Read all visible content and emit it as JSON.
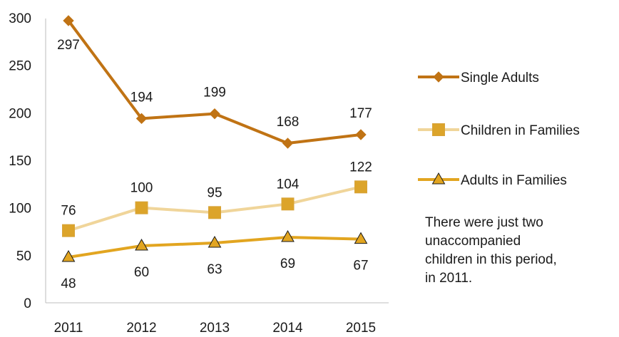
{
  "chart_data": {
    "type": "line",
    "x": [
      "2011",
      "2012",
      "2013",
      "2014",
      "2015"
    ],
    "ylim": [
      0,
      300
    ],
    "yticks": [
      "0",
      "50",
      "100",
      "150",
      "200",
      "250",
      "300"
    ],
    "grid": false,
    "legend_position": "right",
    "series": [
      {
        "name": "Single Adults",
        "values": [
          297,
          194,
          199,
          168,
          177
        ],
        "color": "#c07314",
        "marker": "diamond",
        "label_position": "mixed"
      },
      {
        "name": "Children in Families",
        "values": [
          76,
          100,
          95,
          104,
          122
        ],
        "color": "#f0d59a",
        "marker_color": "#dca42a",
        "marker": "square",
        "label_position": "above"
      },
      {
        "name": "Adults in Families",
        "values": [
          48,
          60,
          63,
          69,
          67
        ],
        "color": "#e2a520",
        "marker": "triangle",
        "label_position": "below"
      }
    ]
  },
  "note": {
    "lines": [
      "There were just two",
      "unaccompanied",
      "children in this period,",
      "in 2011."
    ]
  }
}
